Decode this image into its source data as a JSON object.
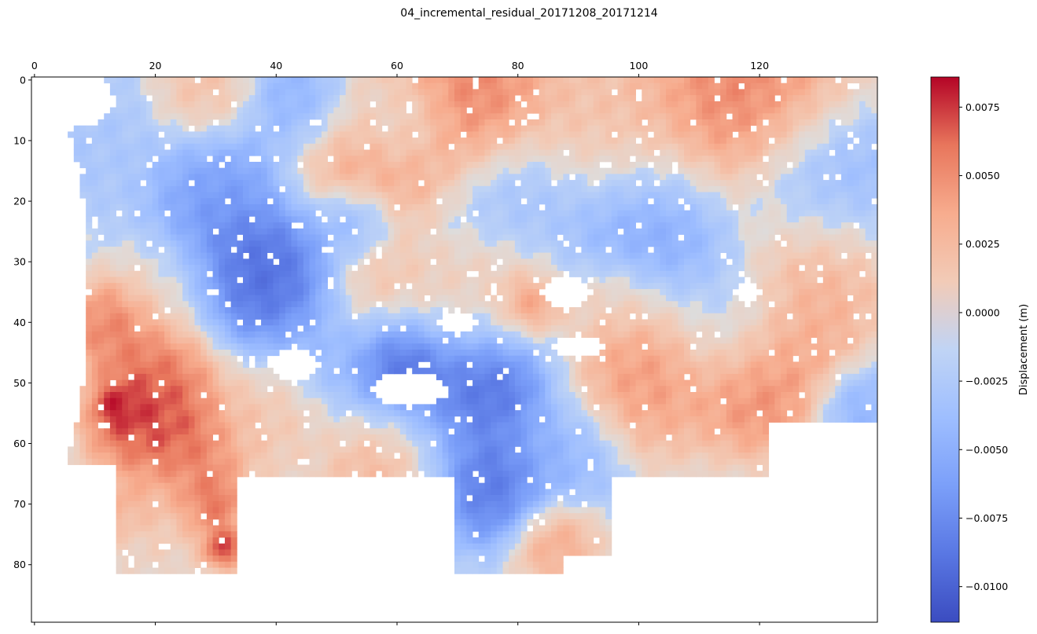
{
  "chart_data": {
    "type": "heatmap",
    "title": "04_incremental_residual_20171208_20171214",
    "x_axis": {
      "position": "top",
      "range": [
        0,
        139
      ],
      "ticks": [
        0,
        20,
        40,
        60,
        80,
        100,
        120
      ],
      "tick_labels": [
        "0",
        "20",
        "40",
        "60",
        "80",
        "100",
        "120"
      ]
    },
    "y_axis": {
      "inverted": true,
      "range": [
        0,
        89
      ],
      "ticks": [
        0,
        10,
        20,
        30,
        40,
        50,
        60,
        70,
        80
      ],
      "tick_labels": [
        "0",
        "10",
        "20",
        "30",
        "40",
        "50",
        "60",
        "70",
        "80"
      ]
    },
    "grid": false,
    "colormap": "coolwarm",
    "colorbar": {
      "label": "Displacement (m)",
      "vmin": -0.0113,
      "vmax": 0.0086,
      "ticks": [
        0.0075,
        0.005,
        0.0025,
        0.0,
        -0.0025,
        -0.005,
        -0.0075,
        -0.01
      ],
      "tick_labels": [
        "0.0075",
        "0.0050",
        "0.0025",
        "0.0000",
        "−0.0025",
        "−0.0050",
        "−0.0075",
        "−0.0100"
      ]
    },
    "grid_size": {
      "cols": 140,
      "rows": 90
    },
    "blobs": [
      {
        "x": 72,
        "y": 2,
        "r": 8,
        "v": 0.0062
      },
      {
        "x": 117,
        "y": 4,
        "r": 10,
        "v": 0.0063
      },
      {
        "x": 28,
        "y": 3,
        "r": 5,
        "v": 0.0032
      },
      {
        "x": 44,
        "y": 4,
        "r": 5,
        "v": -0.0045
      },
      {
        "x": 95,
        "y": 8,
        "r": 8,
        "v": 0.0028
      },
      {
        "x": 60,
        "y": 7,
        "r": 5,
        "v": -0.0015
      },
      {
        "x": 10,
        "y": 10,
        "r": 7,
        "v": -0.0018
      },
      {
        "x": 56,
        "y": 14,
        "r": 8,
        "v": 0.0055
      },
      {
        "x": 30,
        "y": 17,
        "r": 6,
        "v": -0.0055
      },
      {
        "x": 53,
        "y": 24,
        "r": 4,
        "v": -0.0062
      },
      {
        "x": 102,
        "y": 25,
        "r": 8,
        "v": -0.0052
      },
      {
        "x": 80,
        "y": 22,
        "r": 7,
        "v": -0.0028
      },
      {
        "x": 131,
        "y": 18,
        "r": 8,
        "v": -0.0042
      },
      {
        "x": 130,
        "y": 30,
        "r": 7,
        "v": 0.0048
      },
      {
        "x": 36,
        "y": 32,
        "r": 8,
        "v": -0.0092
      },
      {
        "x": 42,
        "y": 33,
        "r": 5,
        "v": -0.0083
      },
      {
        "x": 56,
        "y": 34,
        "r": 6,
        "v": 0.0055
      },
      {
        "x": 76,
        "y": 35,
        "r": 7,
        "v": 0.0058
      },
      {
        "x": 82,
        "y": 37,
        "r": 3,
        "v": 0.0074
      },
      {
        "x": 66,
        "y": 36,
        "r": 5,
        "v": 0.004
      },
      {
        "x": 22,
        "y": 34,
        "r": 5,
        "v": 0.0018
      },
      {
        "x": 13,
        "y": 40,
        "r": 4,
        "v": 0.0062
      },
      {
        "x": 22,
        "y": 47,
        "r": 6,
        "v": 0.0068
      },
      {
        "x": 18,
        "y": 56,
        "r": 5,
        "v": 0.0077
      },
      {
        "x": 24,
        "y": 62,
        "r": 6,
        "v": 0.0068
      },
      {
        "x": 14,
        "y": 54,
        "r": 2,
        "v": 0.0085
      },
      {
        "x": 20,
        "y": 72,
        "r": 6,
        "v": 0.0018
      },
      {
        "x": 14,
        "y": 70,
        "r": 3,
        "v": 0.0045
      },
      {
        "x": 29,
        "y": 70,
        "r": 3,
        "v": 0.0072
      },
      {
        "x": 31,
        "y": 77,
        "r": 2,
        "v": 0.0082
      },
      {
        "x": 68,
        "y": 47,
        "r": 11,
        "v": -0.0085
      },
      {
        "x": 61,
        "y": 46,
        "r": 4,
        "v": -0.0098
      },
      {
        "x": 76,
        "y": 50,
        "r": 4,
        "v": -0.0088
      },
      {
        "x": 100,
        "y": 47,
        "r": 8,
        "v": 0.0055
      },
      {
        "x": 120,
        "y": 51,
        "r": 6,
        "v": 0.006
      },
      {
        "x": 136,
        "y": 54,
        "r": 4,
        "v": -0.004
      },
      {
        "x": 40,
        "y": 54,
        "r": 6,
        "v": 0.0028
      },
      {
        "x": 58,
        "y": 62,
        "r": 6,
        "v": 0.0055
      },
      {
        "x": 76,
        "y": 67,
        "r": 5,
        "v": -0.0085
      },
      {
        "x": 88,
        "y": 62,
        "r": 5,
        "v": -0.0035
      },
      {
        "x": 86,
        "y": 76,
        "r": 4,
        "v": 0.0045
      },
      {
        "x": 115,
        "y": 40,
        "r": 6,
        "v": -0.0012
      },
      {
        "x": 126,
        "y": 44,
        "r": 6,
        "v": 0.0042
      },
      {
        "x": 48,
        "y": 44,
        "r": 5,
        "v": -0.0025
      },
      {
        "x": 96,
        "y": 36,
        "r": 4,
        "v": 0.002
      }
    ],
    "masked_regions": [
      {
        "type": "rect",
        "x0": 0,
        "y0": 64,
        "x1": 13,
        "y1": 89
      },
      {
        "type": "rect",
        "x0": 0,
        "y0": 82,
        "x1": 140,
        "y1": 89
      },
      {
        "type": "rect",
        "x0": 34,
        "y0": 66,
        "x1": 69,
        "y1": 89
      },
      {
        "type": "rect",
        "x0": 88,
        "y0": 79,
        "x1": 140,
        "y1": 89
      },
      {
        "type": "rect",
        "x0": 96,
        "y0": 66,
        "x1": 140,
        "y1": 89
      },
      {
        "type": "rect",
        "x0": 122,
        "y0": 57,
        "x1": 140,
        "y1": 89
      },
      {
        "type": "ellipse",
        "cx": 0,
        "cy": 35,
        "rx": 9,
        "ry": 34
      },
      {
        "type": "ellipse",
        "cx": 6,
        "cy": 3,
        "rx": 7,
        "ry": 5
      },
      {
        "type": "ellipse",
        "cx": 62,
        "cy": 51,
        "rx": 6,
        "ry": 3
      },
      {
        "type": "ellipse",
        "cx": 88,
        "cy": 35,
        "rx": 4,
        "ry": 3
      },
      {
        "type": "ellipse",
        "cx": 43,
        "cy": 47,
        "rx": 4,
        "ry": 3
      },
      {
        "type": "ellipse",
        "cx": 90,
        "cy": 44,
        "rx": 4,
        "ry": 2
      },
      {
        "type": "ellipse",
        "cx": 70,
        "cy": 40,
        "rx": 3,
        "ry": 2
      },
      {
        "type": "ellipse",
        "cx": 118,
        "cy": 35,
        "rx": 2,
        "ry": 2
      }
    ]
  }
}
